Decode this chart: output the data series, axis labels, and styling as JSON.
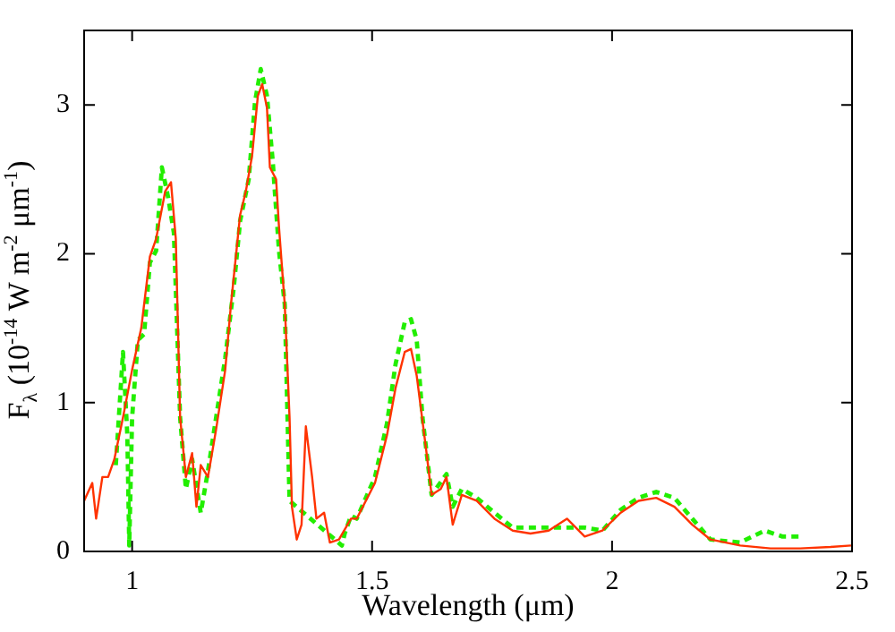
{
  "chart_data": {
    "type": "line",
    "xlabel": "Wavelength (μm)",
    "ylabel": "F$_{λ}$ (10$^{-14}$ W m$^{-2}$ μm$^{-1}$)",
    "xlim": [
      0.9,
      2.5
    ],
    "xticks": [
      1,
      1.5,
      2,
      2.5
    ],
    "ylim": [
      0,
      3.5
    ],
    "yticks": [
      0,
      1,
      2,
      3
    ],
    "grid": false,
    "legend": false,
    "marker": "none",
    "series": [
      {
        "color": "#ff3300",
        "line_style": "solid",
        "x": [
          0.9,
          0.917,
          0.925,
          0.938,
          0.95,
          0.963,
          0.981,
          1.0,
          1.019,
          1.037,
          1.05,
          1.069,
          1.081,
          1.091,
          1.1,
          1.112,
          1.125,
          1.134,
          1.143,
          1.158,
          1.175,
          1.194,
          1.206,
          1.225,
          1.237,
          1.25,
          1.262,
          1.271,
          1.281,
          1.287,
          1.3,
          1.306,
          1.318,
          1.328,
          1.333,
          1.343,
          1.353,
          1.362,
          1.375,
          1.384,
          1.4,
          1.412,
          1.431,
          1.456,
          1.468,
          1.506,
          1.531,
          1.549,
          1.568,
          1.581,
          1.593,
          1.612,
          1.624,
          1.643,
          1.655,
          1.668,
          1.687,
          1.718,
          1.755,
          1.793,
          1.83,
          1.868,
          1.906,
          1.943,
          1.98,
          2.018,
          2.055,
          2.092,
          2.13,
          2.167,
          2.205,
          2.267,
          2.33,
          2.392,
          2.455,
          2.498
        ],
        "values": [
          0.34,
          0.46,
          0.22,
          0.5,
          0.5,
          0.62,
          0.9,
          1.22,
          1.5,
          1.98,
          2.1,
          2.42,
          2.48,
          2.1,
          0.9,
          0.5,
          0.66,
          0.3,
          0.58,
          0.5,
          0.82,
          1.22,
          1.66,
          2.26,
          2.42,
          2.66,
          3.06,
          3.14,
          2.98,
          2.58,
          2.5,
          2.18,
          1.66,
          0.9,
          0.3,
          0.08,
          0.18,
          0.84,
          0.5,
          0.22,
          0.26,
          0.06,
          0.08,
          0.22,
          0.22,
          0.46,
          0.78,
          1.1,
          1.34,
          1.36,
          1.18,
          0.7,
          0.38,
          0.42,
          0.5,
          0.18,
          0.38,
          0.34,
          0.22,
          0.14,
          0.12,
          0.14,
          0.22,
          0.1,
          0.14,
          0.26,
          0.34,
          0.36,
          0.3,
          0.18,
          0.08,
          0.04,
          0.02,
          0.02,
          0.03,
          0.04
        ]
      },
      {
        "color": "#22ee00",
        "line_style": "dashed",
        "x": [
          0.966,
          0.981,
          0.99,
          0.994,
          1.0,
          1.012,
          1.025,
          1.037,
          1.05,
          1.062,
          1.075,
          1.087,
          1.1,
          1.112,
          1.125,
          1.143,
          1.158,
          1.175,
          1.194,
          1.212,
          1.225,
          1.243,
          1.256,
          1.268,
          1.281,
          1.293,
          1.306,
          1.318,
          1.328,
          1.437,
          1.443,
          1.456,
          1.468,
          1.506,
          1.531,
          1.549,
          1.568,
          1.581,
          1.593,
          1.605,
          1.624,
          1.655,
          1.668,
          1.687,
          1.718,
          1.755,
          1.793,
          1.83,
          1.943,
          1.98,
          2.018,
          2.055,
          2.092,
          2.13,
          2.167,
          2.205,
          2.267,
          2.318,
          2.355,
          2.398
        ],
        "values": [
          0.58,
          1.34,
          0.78,
          0.04,
          0.9,
          1.42,
          1.46,
          1.94,
          2.02,
          2.58,
          2.38,
          2.14,
          0.9,
          0.42,
          0.62,
          0.26,
          0.54,
          0.9,
          1.3,
          1.78,
          2.22,
          2.5,
          3.02,
          3.24,
          3.06,
          2.62,
          2.02,
          1.66,
          0.34,
          0.04,
          0.12,
          0.24,
          0.22,
          0.5,
          0.86,
          1.26,
          1.54,
          1.56,
          1.42,
          0.9,
          0.38,
          0.52,
          0.3,
          0.42,
          0.36,
          0.26,
          0.16,
          0.16,
          0.16,
          0.14,
          0.28,
          0.36,
          0.4,
          0.36,
          0.22,
          0.08,
          0.06,
          0.14,
          0.1,
          0.1
        ]
      }
    ]
  }
}
